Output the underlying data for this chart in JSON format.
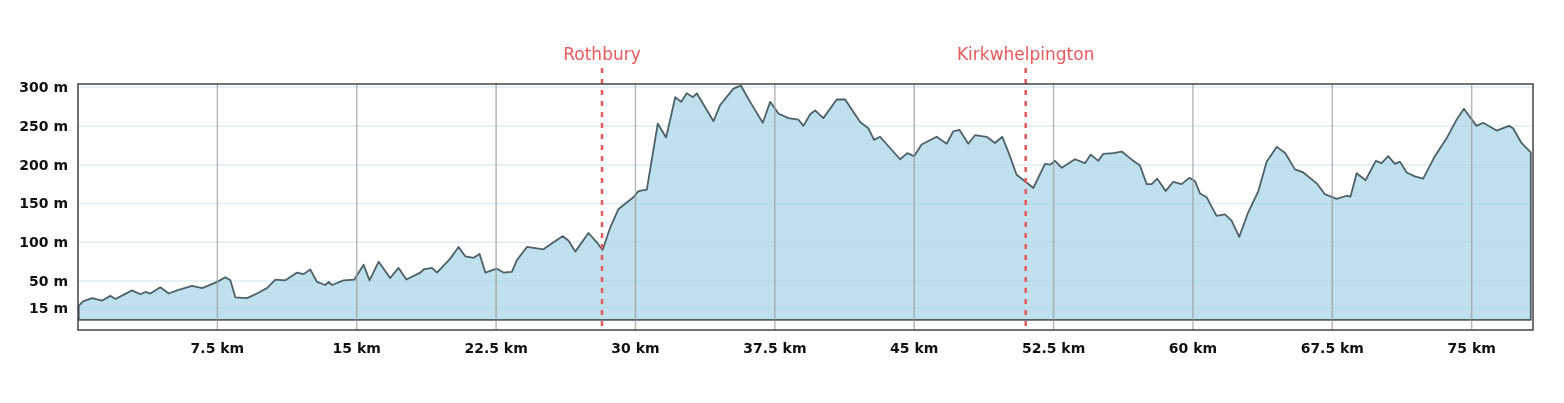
{
  "chart_data": {
    "type": "area",
    "x": [
      0.04,
      0.27,
      0.76,
      1.3,
      1.74,
      2.01,
      2.91,
      3.36,
      3.63,
      3.89,
      4.43,
      4.88,
      5.33,
      6.14,
      6.68,
      7.3,
      7.57,
      7.93,
      8.2,
      8.47,
      9.1,
      9.63,
      10.17,
      10.62,
      11.16,
      11.79,
      12.14,
      12.5,
      12.86,
      13.31,
      13.49,
      13.67,
      14.29,
      14.87,
      15.37,
      15.69,
      16.18,
      16.8,
      17.25,
      17.67,
      18.42,
      18.6,
      19.05,
      19.32,
      20.03,
      20.48,
      20.84,
      21.29,
      21.61,
      21.92,
      22.54,
      22.9,
      23.35,
      23.62,
      24.16,
      25.05,
      25.59,
      26.09,
      26.4,
      26.76,
      27.47,
      27.92,
      28.23,
      28.64,
      29.09,
      29.89,
      30.16,
      30.61,
      31.2,
      31.65,
      32.14,
      32.46,
      32.76,
      33.09,
      33.3,
      34.2,
      34.56,
      35.27,
      35.67,
      36.17,
      36.85,
      37.25,
      37.69,
      38.23,
      38.77,
      39.04,
      39.4,
      39.67,
      40.11,
      40.83,
      41.28,
      42.09,
      42.53,
      42.84,
      43.16,
      44.24,
      44.63,
      44.99,
      45.4,
      46.21,
      46.75,
      47.1,
      47.43,
      47.91,
      48.27,
      48.9,
      49.35,
      49.74,
      50.12,
      50.51,
      51.05,
      51.41,
      52.04,
      52.31,
      52.58,
      52.94,
      53.65,
      54.19,
      54.5,
      54.91,
      55.18,
      55.71,
      56.17,
      56.79,
      57.15,
      57.51,
      57.78,
      58.08,
      58.53,
      58.94,
      59.39,
      59.8,
      60.11,
      60.38,
      60.74,
      61.27,
      61.72,
      62.08,
      62.49,
      62.98,
      63.52,
      63.97,
      64.51,
      64.96,
      65.49,
      65.94,
      66.66,
      67.1,
      67.73,
      68.27,
      68.48,
      68.81,
      69.29,
      69.84,
      70.15,
      70.51,
      70.87,
      71.14,
      71.5,
      71.94,
      72.39,
      73.02,
      73.65,
      74.19,
      74.58,
      75.26,
      75.62,
      76.34,
      77.01,
      77.23,
      77.68,
      78.18
    ],
    "series": [
      {
        "color": "#a9d6e5",
        "values": [
          18,
          24,
          28,
          25,
          31,
          27,
          38,
          33,
          36,
          34,
          42,
          34,
          38,
          44,
          41,
          47,
          50,
          55,
          51,
          29,
          28,
          34,
          41,
          52,
          51,
          61,
          59,
          65,
          49,
          45,
          49,
          45,
          51,
          52,
          71,
          51,
          75,
          54,
          67,
          52,
          61,
          65,
          67,
          61,
          79,
          94,
          82,
          80,
          85,
          61,
          66,
          61,
          62,
          77,
          94,
          91,
          100,
          108,
          102,
          88,
          112,
          100,
          90,
          119,
          143,
          158,
          166,
          168,
          253,
          235,
          287,
          281,
          292,
          287,
          292,
          256,
          277,
          298,
          302,
          281,
          254,
          281,
          266,
          260,
          258,
          250,
          265,
          270,
          260,
          284,
          284,
          255,
          247,
          232,
          236,
          207,
          215,
          211,
          226,
          236,
          227,
          243,
          245,
          227,
          238,
          236,
          228,
          236,
          213,
          187,
          177,
          170,
          201,
          200,
          205,
          196,
          207,
          202,
          213,
          205,
          214,
          215,
          217,
          205,
          199,
          175,
          175,
          182,
          166,
          178,
          175,
          183,
          179,
          163,
          158,
          134,
          136,
          128,
          107,
          139,
          166,
          204,
          223,
          215,
          194,
          190,
          176,
          162,
          156,
          160,
          159,
          189,
          180,
          205,
          202,
          211,
          201,
          204,
          190,
          185,
          182,
          211,
          234,
          258,
          272,
          250,
          254,
          244,
          250,
          247,
          228,
          216
        ]
      }
    ],
    "xlim": [
      0,
      78.3
    ],
    "ylim": [
      -13,
      304
    ],
    "xticks": [
      {
        "value": 7.5,
        "label": "7.5 km"
      },
      {
        "value": 15,
        "label": "15 km"
      },
      {
        "value": 22.5,
        "label": "22.5 km"
      },
      {
        "value": 30,
        "label": "30 km"
      },
      {
        "value": 37.5,
        "label": "37.5 km"
      },
      {
        "value": 45,
        "label": "45 km"
      },
      {
        "value": 52.5,
        "label": "52.5 km"
      },
      {
        "value": 60,
        "label": "60 km"
      },
      {
        "value": 67.5,
        "label": "67.5 km"
      },
      {
        "value": 75,
        "label": "75 km"
      }
    ],
    "yticks": [
      {
        "value": 15,
        "label": "15 m"
      },
      {
        "value": 50,
        "label": "50 m"
      },
      {
        "value": 100,
        "label": "100 m"
      },
      {
        "value": 150,
        "label": "150 m"
      },
      {
        "value": 200,
        "label": "200 m"
      },
      {
        "value": 250,
        "label": "250 m"
      },
      {
        "value": 300,
        "label": "300 m"
      }
    ],
    "grid": true,
    "ref_lines": [
      {
        "axis": "x",
        "value": 28.2,
        "label": "Rothbury",
        "color": "#e8595c",
        "line_style": "dashed"
      },
      {
        "axis": "x",
        "value": 51.0,
        "label": "Kirkwhelpington",
        "color": "#e8595c",
        "line_style": "dashed"
      }
    ]
  }
}
